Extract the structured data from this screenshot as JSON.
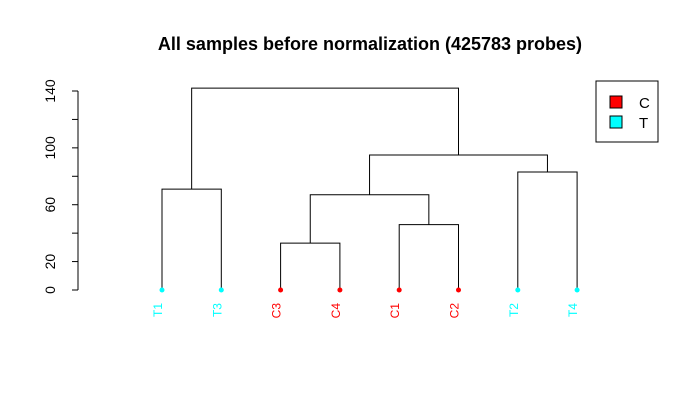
{
  "chart_data": {
    "type": "dendrogram",
    "title": "All samples before normalization (425783 probes)",
    "ylim": [
      0,
      140
    ],
    "yticks": [
      0,
      20,
      60,
      100,
      140
    ],
    "grid": false,
    "leaves": [
      {
        "label": "T1",
        "group": "T"
      },
      {
        "label": "T3",
        "group": "T"
      },
      {
        "label": "C3",
        "group": "C"
      },
      {
        "label": "C4",
        "group": "C"
      },
      {
        "label": "C1",
        "group": "C"
      },
      {
        "label": "C2",
        "group": "C"
      },
      {
        "label": "T2",
        "group": "T"
      },
      {
        "label": "T4",
        "group": "T"
      }
    ],
    "merges": [
      {
        "left": "C3",
        "right": "C4",
        "height": 33
      },
      {
        "left": "C1",
        "right": "C2",
        "height": 46
      },
      {
        "left": "T1",
        "right": "T3",
        "height": 71
      },
      {
        "left": "T2",
        "right": "T4",
        "height": 83
      },
      {
        "left": "C3+C4",
        "right": "C1+C2",
        "height": 67
      },
      {
        "left": "C3+C4+C1+C2",
        "right": "T2+T4",
        "height": 95
      },
      {
        "left": "T1+T3",
        "right": "C3+C4+C1+C2+T2+T4",
        "height": 142
      }
    ],
    "legend": {
      "placement": "top-right",
      "entries": [
        {
          "label": "C",
          "group": "C",
          "color": "#ff0000"
        },
        {
          "label": "T",
          "group": "T",
          "color": "#00ffff"
        }
      ]
    },
    "colors": {
      "C": "#ff0000",
      "T": "#00ffff",
      "line": "#000000"
    }
  }
}
